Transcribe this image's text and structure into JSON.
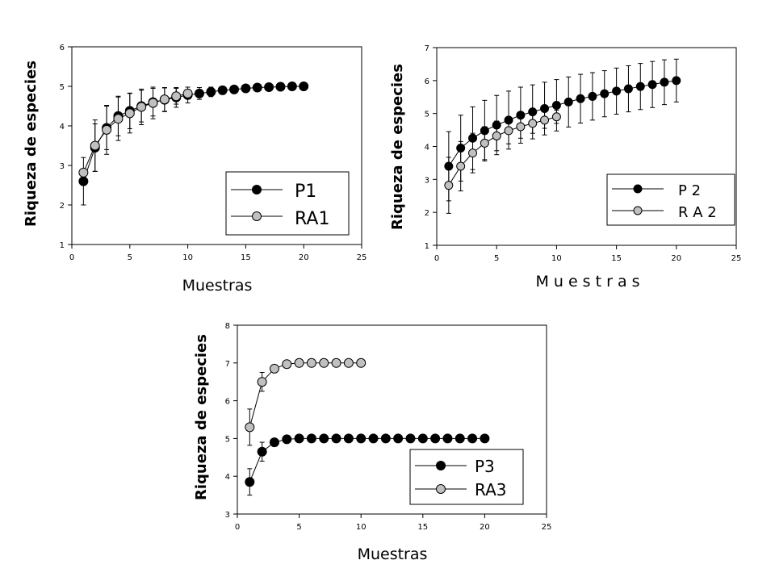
{
  "chart_data": [
    {
      "type": "line",
      "title": "",
      "xlabel": "Muestras",
      "ylabel": "Riqueza de especies",
      "xlim": [
        0,
        25
      ],
      "ylim": [
        1,
        6
      ],
      "xticks": [
        0,
        5,
        10,
        15,
        20,
        25
      ],
      "yticks": [
        1,
        2,
        3,
        4,
        5,
        6
      ],
      "legend_position": "bottom-right",
      "series": [
        {
          "name": "P1",
          "color": "#000000",
          "x": [
            1,
            2,
            3,
            4,
            5,
            6,
            7,
            8,
            9,
            10,
            11,
            12,
            13,
            14,
            15,
            16,
            17,
            18,
            19,
            20
          ],
          "values": [
            2.6,
            3.45,
            3.95,
            4.25,
            4.38,
            4.5,
            4.6,
            4.66,
            4.72,
            4.78,
            4.82,
            4.86,
            4.9,
            4.92,
            4.95,
            4.97,
            4.98,
            4.99,
            5.0,
            5.0
          ],
          "err": [
            0.6,
            0.6,
            0.55,
            0.5,
            0.45,
            0.4,
            0.35,
            0.3,
            0.25,
            0.2,
            0.15,
            0.12,
            0.1,
            0.06,
            0.04,
            0.03,
            0.02,
            0.01,
            0.0,
            0.0
          ]
        },
        {
          "name": "RA1",
          "color": "#c0c0c0",
          "x": [
            1,
            2,
            3,
            4,
            5,
            6,
            7,
            8,
            9,
            10
          ],
          "values": [
            2.82,
            3.5,
            3.9,
            4.18,
            4.32,
            4.48,
            4.58,
            4.67,
            4.75,
            4.82
          ],
          "err": [
            0.0,
            0.65,
            0.62,
            0.55,
            0.5,
            0.45,
            0.4,
            0.3,
            0.2,
            0.1
          ]
        }
      ]
    },
    {
      "type": "line",
      "title": "",
      "xlabel": "M u e s t r a s",
      "ylabel": "Riqueza de especies",
      "xlim": [
        0,
        25
      ],
      "ylim": [
        1,
        7
      ],
      "xticks": [
        0,
        5,
        10,
        15,
        20,
        25
      ],
      "yticks": [
        1,
        2,
        3,
        4,
        5,
        6,
        7
      ],
      "legend_position": "bottom-right",
      "series": [
        {
          "name": "P 2",
          "color": "#000000",
          "x": [
            1,
            2,
            3,
            4,
            5,
            6,
            7,
            8,
            9,
            10,
            11,
            12,
            13,
            14,
            15,
            16,
            17,
            18,
            19,
            20
          ],
          "values": [
            3.4,
            3.95,
            4.25,
            4.48,
            4.65,
            4.8,
            4.95,
            5.05,
            5.15,
            5.25,
            5.35,
            5.45,
            5.52,
            5.6,
            5.68,
            5.75,
            5.82,
            5.88,
            5.95,
            6.0
          ],
          "err": [
            1.05,
            1.0,
            0.95,
            0.92,
            0.9,
            0.88,
            0.85,
            0.82,
            0.8,
            0.78,
            0.76,
            0.74,
            0.72,
            0.7,
            0.7,
            0.7,
            0.7,
            0.7,
            0.68,
            0.65
          ]
        },
        {
          "name": "R A 2",
          "color": "#c0c0c0",
          "x": [
            1,
            2,
            3,
            4,
            5,
            6,
            7,
            8,
            9,
            10
          ],
          "values": [
            2.82,
            3.4,
            3.8,
            4.1,
            4.32,
            4.48,
            4.6,
            4.7,
            4.8,
            4.9
          ],
          "err": [
            0.85,
            0.75,
            0.6,
            0.5,
            0.45,
            0.4,
            0.35,
            0.3,
            0.25,
            0.2
          ]
        }
      ]
    },
    {
      "type": "line",
      "title": "",
      "xlabel": "Muestras",
      "ylabel": "Riqueza de especies",
      "xlim": [
        0,
        25
      ],
      "ylim": [
        3,
        8
      ],
      "xticks": [
        0,
        5,
        10,
        15,
        20,
        25
      ],
      "yticks": [
        3,
        4,
        5,
        6,
        7,
        8
      ],
      "legend_position": "bottom-right",
      "series": [
        {
          "name": "P3",
          "color": "#000000",
          "x": [
            1,
            2,
            3,
            4,
            5,
            6,
            7,
            8,
            9,
            10,
            11,
            12,
            13,
            14,
            15,
            16,
            17,
            18,
            19,
            20
          ],
          "values": [
            3.85,
            4.65,
            4.9,
            4.98,
            5.0,
            5.0,
            5.0,
            5.0,
            5.0,
            5.0,
            5.0,
            5.0,
            5.0,
            5.0,
            5.0,
            5.0,
            5.0,
            5.0,
            5.0,
            5.0
          ],
          "err": [
            0.35,
            0.25,
            0.08,
            0.03,
            0,
            0,
            0,
            0,
            0,
            0,
            0,
            0,
            0,
            0,
            0,
            0,
            0,
            0,
            0,
            0
          ]
        },
        {
          "name": "RA3",
          "color": "#c0c0c0",
          "x": [
            1,
            2,
            3,
            4,
            5,
            6,
            7,
            8,
            9,
            10
          ],
          "values": [
            5.3,
            6.5,
            6.85,
            6.97,
            7.0,
            7.0,
            7.0,
            7.0,
            7.0,
            7.0
          ],
          "err": [
            0.48,
            0.25,
            0.06,
            0.02,
            0,
            0,
            0,
            0,
            0,
            0
          ]
        }
      ]
    }
  ]
}
